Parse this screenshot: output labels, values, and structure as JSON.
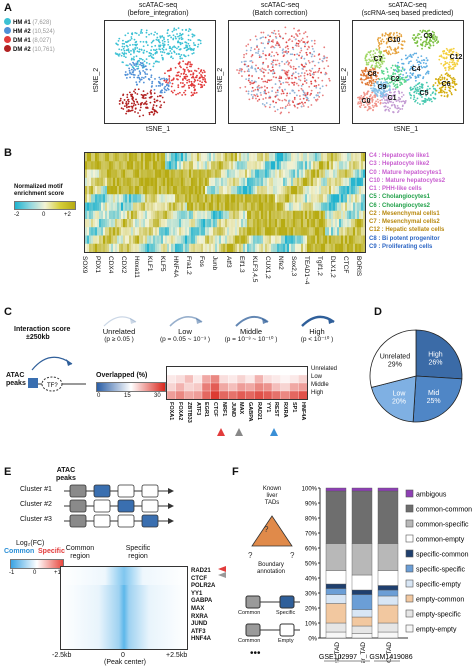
{
  "panelA": {
    "label": "A",
    "legend": [
      {
        "name": "HM #1",
        "count": "(7,628)",
        "color": "#3cc1d4"
      },
      {
        "name": "HM #2",
        "count": "(10,524)",
        "color": "#4f8fd6"
      },
      {
        "name": "DM #1",
        "count": "(8,027)",
        "color": "#e23b3b"
      },
      {
        "name": "DM #2",
        "count": "(10,761)",
        "color": "#b22222"
      }
    ],
    "plots": [
      {
        "title1": "scATAC-seq",
        "title2": "(before_integration)",
        "ylab": "tSNE_2",
        "xlab": "tSNE_1"
      },
      {
        "title1": "scATAC-seq",
        "title2": "(Batch correction)",
        "ylab": "tSNE_2",
        "xlab": "tSNE_1"
      },
      {
        "title1": "scATAC-seq",
        "title2": "(scRNA-seq based predicted)",
        "ylab": "tSNE_2",
        "xlab": "tSNE_1"
      }
    ],
    "clusters": [
      "C10",
      "C3",
      "C12",
      "C7",
      "C8",
      "C4",
      "C2",
      "C0",
      "C1",
      "C5",
      "C9",
      "C6"
    ]
  },
  "panelB": {
    "label": "B",
    "scale_title1": "Normalized motif",
    "scale_title2": "enrichment score",
    "scale_ticks": [
      "-2",
      "0",
      "+2"
    ],
    "rows": [
      {
        "label": "C4 : Hepatocyte like1",
        "color": "#c95fd0"
      },
      {
        "label": "C3 : Hepatocyte like2",
        "color": "#c95fd0"
      },
      {
        "label": "C0 : Mature hepatocytes1",
        "color": "#c95fd0"
      },
      {
        "label": "C10 : Mature hepatocytes2",
        "color": "#c95fd0"
      },
      {
        "label": "C1 : PHH-like cells",
        "color": "#c95fd0"
      },
      {
        "label": "C5 : Cholangiocytes1",
        "color": "#22a14a"
      },
      {
        "label": "C6 : Cholangiocytes2",
        "color": "#22a14a"
      },
      {
        "label": "C2 : Mesenchymal cells1",
        "color": "#b98a12"
      },
      {
        "label": "C7 : Mesenchymal cells2",
        "color": "#b98a12"
      },
      {
        "label": "C12 : Hepatic stellate cells",
        "color": "#b98a12"
      },
      {
        "label": "C8 : Bi potent progenitor",
        "color": "#2d66c4"
      },
      {
        "label": "C9 : Proliferating cells",
        "color": "#2d66c4"
      }
    ],
    "motifs": [
      "SOX9",
      "PDX1",
      "CDX4",
      "CDX2",
      "Hoxa11",
      "KLF1",
      "KLF5",
      "HNF4A",
      "Fra1.2",
      "Fos",
      "Junb",
      "Atf3",
      "Elf1.3",
      "KLF3,4,5",
      "CUX1,2",
      "Nfe2",
      "Sox2,3",
      "TEAD1~4",
      "Tgif1,2",
      "DLX1,2",
      "CTCF",
      "BORIS"
    ]
  },
  "panelC": {
    "label": "C",
    "interaction_title": "Interaction score",
    "interaction_sub": "±250kb",
    "atac_label1": "ATAC",
    "atac_label2": "peaks",
    "tf_label": "TF?",
    "categories": [
      {
        "name": "Unrelated",
        "range": "(p ≥ 0.05 )"
      },
      {
        "name": "Low",
        "range": "(p = 0.05 ~ 10⁻³ )"
      },
      {
        "name": "Middle",
        "range": "(p = 10⁻³ ~ 10⁻¹⁰ )"
      },
      {
        "name": "High",
        "range": "(p < 10⁻¹⁰ )"
      }
    ],
    "overlap_title": "Overlapped (%)",
    "overlap_ticks": [
      "0",
      "15",
      "30"
    ],
    "heat_rows": [
      "Unrelated",
      "Low",
      "Middle",
      "High"
    ],
    "heat_cols": [
      "FOXA1",
      "FOXA2",
      "ZBTB33",
      "ATF3",
      "EGR1",
      "CTCF",
      "NRF1",
      "JUND",
      "MAX",
      "GABPA",
      "RAD21",
      "YY1",
      "REST",
      "RXRA",
      "SP1",
      "HNF4A"
    ],
    "heat_values": [
      [
        0.05,
        0.05,
        0.05,
        0.05,
        0.05,
        0.05,
        0.05,
        0.05,
        0.05,
        0.05,
        0.05,
        0.05,
        0.05,
        0.05,
        0.05,
        0.05
      ],
      [
        0.1,
        0.15,
        0.3,
        0.1,
        0.4,
        0.55,
        0.15,
        0.1,
        0.2,
        0.1,
        0.35,
        0.15,
        0.1,
        0.05,
        0.1,
        0.2
      ],
      [
        0.2,
        0.35,
        0.2,
        0.25,
        0.6,
        0.75,
        0.4,
        0.3,
        0.45,
        0.4,
        0.55,
        0.5,
        0.3,
        0.2,
        0.4,
        0.45
      ],
      [
        0.45,
        0.55,
        0.4,
        0.45,
        0.7,
        0.9,
        0.7,
        0.65,
        0.75,
        0.7,
        0.8,
        0.75,
        0.65,
        0.55,
        0.7,
        0.8
      ]
    ]
  },
  "panelD": {
    "label": "D",
    "slices": [
      {
        "name": "High",
        "value": 26,
        "pct": "26%",
        "color": "#3b6ba7"
      },
      {
        "name": "Mid",
        "value": 25,
        "pct": "25%",
        "color": "#4f86c6"
      },
      {
        "name": "Low",
        "value": 20,
        "pct": "20%",
        "color": "#7fb0e3"
      },
      {
        "name": "Unrelated",
        "value": 29,
        "pct": "29%",
        "color": "#ffffff"
      }
    ]
  },
  "panelE": {
    "label": "E",
    "atac_label1": "ATAC",
    "atac_label2": "peaks",
    "clusters": [
      "Cluster #1",
      "Cluster #2",
      "Cluster #3"
    ],
    "logfc_label": "Log₂(FC)",
    "common_label": "Common",
    "specific_label": "Specific",
    "common_region": "Common region",
    "specific_region": "Specific region",
    "scale_ticks": [
      "-1",
      "0",
      "+1"
    ],
    "tfs": [
      "RAD21",
      "CTCF",
      "POLR2A",
      "YY1",
      "GABPA",
      "MAX",
      "RXRA",
      "JUND",
      "ATF3",
      "HNF4A"
    ],
    "x_ticks": [
      "-2.5kb",
      "0",
      "+2.5kb"
    ],
    "x_center": "(Peak center)"
  },
  "panelF": {
    "label": "F",
    "tads_label": [
      "Known",
      "liver",
      "TADs"
    ],
    "boundary_label": [
      "Boundary",
      "annotation"
    ],
    "common_label": "Common",
    "specific_label": "Specific",
    "empty_label": "Empty",
    "dots": "•••",
    "y_ticks": [
      "100%",
      "90%",
      "80%",
      "70%",
      "60%",
      "50%",
      "40%",
      "30%",
      "20%",
      "10%",
      "0%"
    ],
    "bars": [
      "Intra_TAD",
      "Inter_TAD",
      "Hi-C_TAD"
    ],
    "datasets": [
      "GSE102997",
      "GSM1419086"
    ],
    "legend": [
      {
        "name": "ambigous",
        "color": "#8e3fb5"
      },
      {
        "name": "common-common",
        "color": "#6e6e6e"
      },
      {
        "name": "common-specific",
        "color": "#b8b8b8"
      },
      {
        "name": "common-empty",
        "color": "#ffffff"
      },
      {
        "name": "specific-common",
        "color": "#1f3f6e"
      },
      {
        "name": "specific-specific",
        "color": "#6b9ed6"
      },
      {
        "name": "specific-empty",
        "color": "#d8e6f5"
      },
      {
        "name": "empty-common",
        "color": "#f2c8a0"
      },
      {
        "name": "empty-specific",
        "color": "#e6e6e6"
      },
      {
        "name": "empty-empty",
        "color": "#f7f7f7"
      }
    ],
    "chart_data": {
      "type": "bar",
      "categories": [
        "Intra_TAD",
        "Inter_TAD",
        "Hi-C_TAD"
      ],
      "series": [
        {
          "name": "empty-empty",
          "values": [
            4,
            3,
            4
          ]
        },
        {
          "name": "empty-specific",
          "values": [
            6,
            5,
            6
          ]
        },
        {
          "name": "empty-common",
          "values": [
            13,
            6,
            12
          ]
        },
        {
          "name": "specific-empty",
          "values": [
            6,
            5,
            6
          ]
        },
        {
          "name": "specific-specific",
          "values": [
            4,
            10,
            4
          ]
        },
        {
          "name": "specific-common",
          "values": [
            3,
            3,
            3
          ]
        },
        {
          "name": "common-empty",
          "values": [
            9,
            10,
            10
          ]
        },
        {
          "name": "common-specific",
          "values": [
            18,
            21,
            18
          ]
        },
        {
          "name": "common-common",
          "values": [
            35,
            35,
            35
          ]
        },
        {
          "name": "ambigous",
          "values": [
            2,
            2,
            2
          ]
        }
      ],
      "ylim": [
        0,
        100
      ]
    }
  }
}
